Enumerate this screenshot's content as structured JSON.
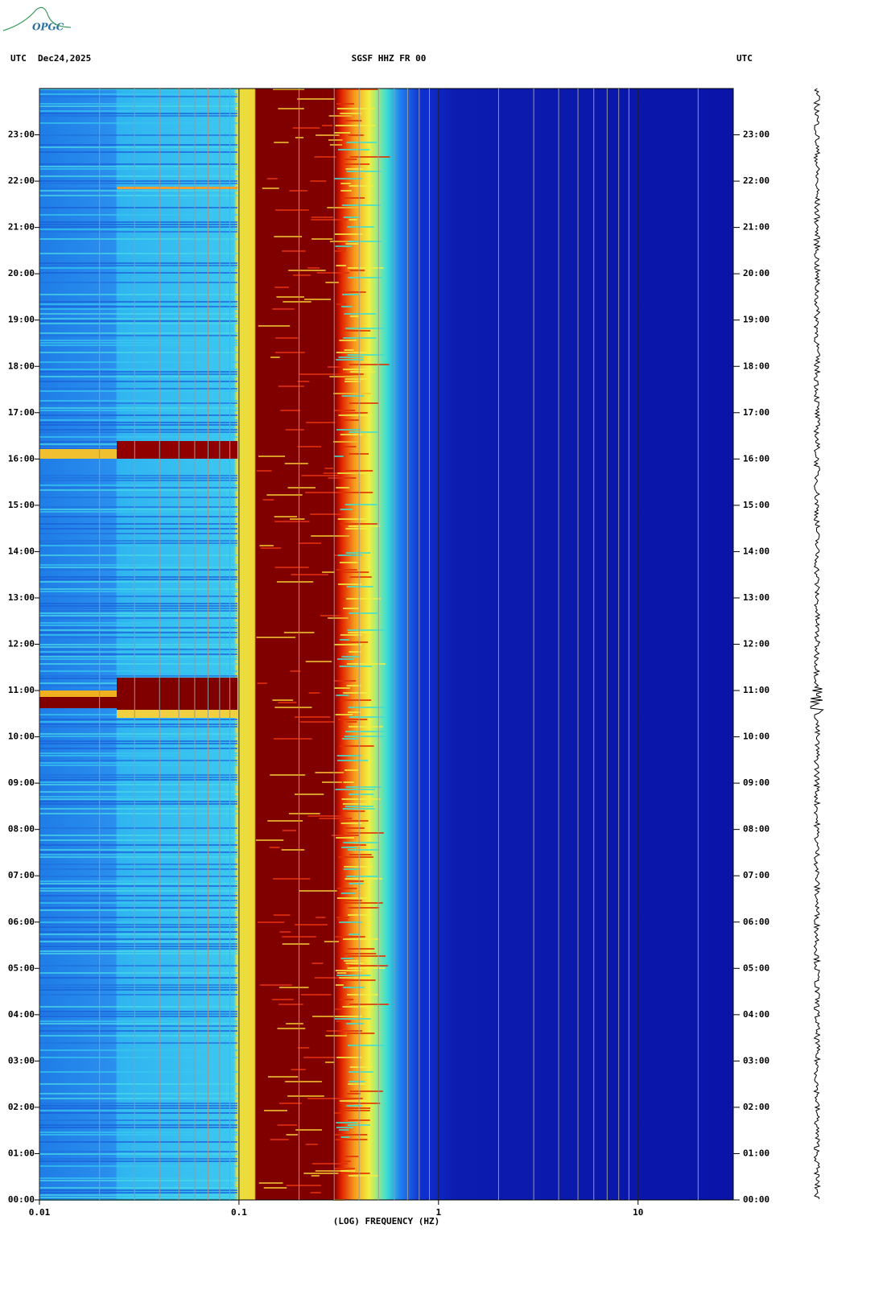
{
  "logo": "OPGC",
  "chart_data": {
    "type": "spectrogram",
    "title": "SGSF HHZ FR 00",
    "left_label": "UTC",
    "date": "Dec24,2025",
    "right_label": "UTC",
    "x_label": "(LOG) FREQUENCY (HZ)",
    "x_scale": "log",
    "xlim": [
      0.01,
      30
    ],
    "xticks": [
      0.01,
      0.1,
      1,
      10
    ],
    "xminorticks": [
      0.02,
      0.03,
      0.04,
      0.05,
      0.06,
      0.07,
      0.08,
      0.09,
      0.2,
      0.3,
      0.4,
      0.5,
      0.6,
      0.7,
      0.8,
      0.9,
      2,
      3,
      4,
      5,
      6,
      7,
      8,
      9,
      20
    ],
    "ylim": [
      0,
      24
    ],
    "yticks": [
      {
        "value": 0,
        "label": "00:00"
      },
      {
        "value": 1,
        "label": "01:00"
      },
      {
        "value": 2,
        "label": "02:00"
      },
      {
        "value": 3,
        "label": "03:00"
      },
      {
        "value": 4,
        "label": "04:00"
      },
      {
        "value": 5,
        "label": "05:00"
      },
      {
        "value": 6,
        "label": "06:00"
      },
      {
        "value": 7,
        "label": "07:00"
      },
      {
        "value": 8,
        "label": "08:00"
      },
      {
        "value": 9,
        "label": "09:00"
      },
      {
        "value": 10,
        "label": "10:00"
      },
      {
        "value": 11,
        "label": "11:00"
      },
      {
        "value": 12,
        "label": "12:00"
      },
      {
        "value": 13,
        "label": "13:00"
      },
      {
        "value": 14,
        "label": "14:00"
      },
      {
        "value": 15,
        "label": "15:00"
      },
      {
        "value": 16,
        "label": "16:00"
      },
      {
        "value": 17,
        "label": "17:00"
      },
      {
        "value": 18,
        "label": "18:00"
      },
      {
        "value": 19,
        "label": "19:00"
      },
      {
        "value": 20,
        "label": "20:00"
      },
      {
        "value": 21,
        "label": "21:00"
      },
      {
        "value": 22,
        "label": "22:00"
      },
      {
        "value": 23,
        "label": "23:00"
      }
    ]
  }
}
